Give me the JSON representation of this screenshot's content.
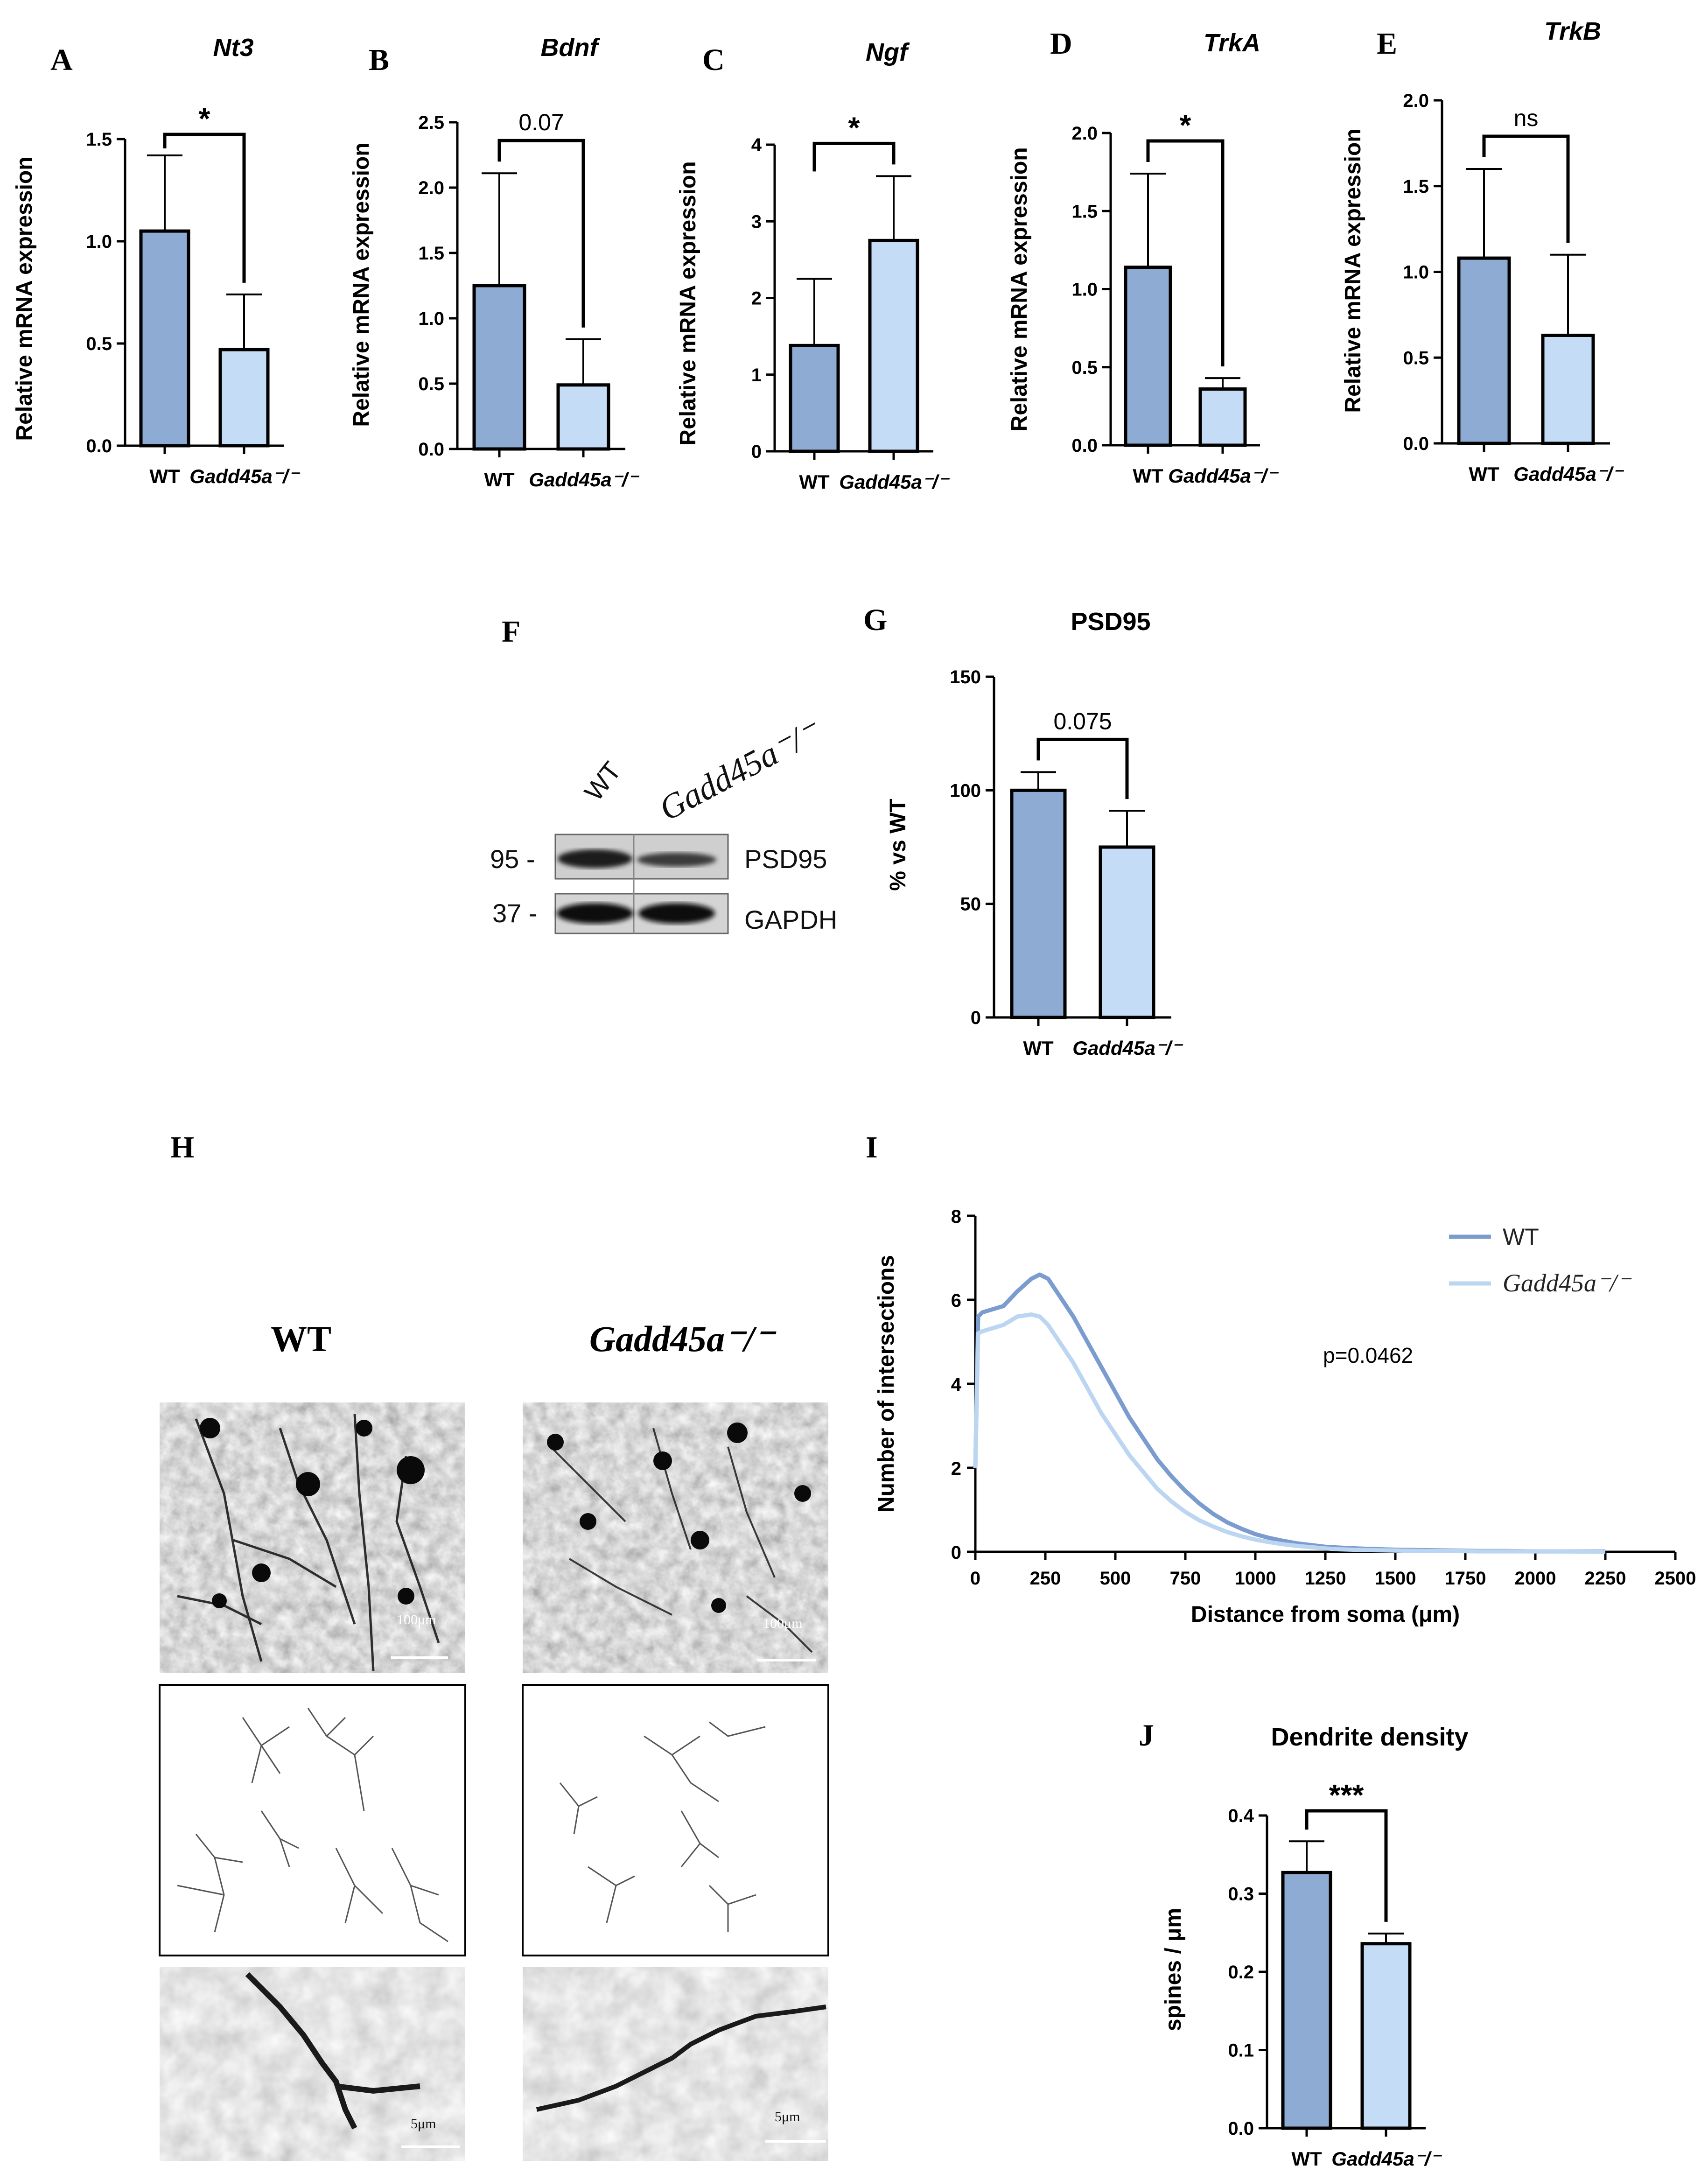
{
  "panel_labels": {
    "A": "A",
    "B": "B",
    "C": "C",
    "D": "D",
    "E": "E",
    "F": "F",
    "G": "G",
    "H": "H",
    "I": "I",
    "J": "J"
  },
  "colors": {
    "wt": "#8eabd4",
    "ko": "#c5dcf6",
    "wt_line": "#7b9ccf",
    "ko_line": "#bcd6f2",
    "axis": "#000000"
  },
  "chart_data": [
    {
      "id": "A",
      "type": "bar",
      "title": "Nt3",
      "ylabel": "Relative mRNA expression",
      "ylim": [
        0,
        1.5
      ],
      "yticks": [
        "0.0",
        "0.5",
        "1.0",
        "1.5"
      ],
      "categories": [
        "WT",
        "Gadd45a⁻/⁻"
      ],
      "values": [
        1.05,
        0.47
      ],
      "errors": [
        0.37,
        0.27
      ],
      "significance": "*"
    },
    {
      "id": "B",
      "type": "bar",
      "title": "Bdnf",
      "ylabel": "Relative mRNA expression",
      "ylim": [
        0,
        2.5
      ],
      "yticks": [
        "0.0",
        "0.5",
        "1.0",
        "1.5",
        "2.0",
        "2.5"
      ],
      "categories": [
        "WT",
        "Gadd45a⁻/⁻"
      ],
      "values": [
        1.25,
        0.49
      ],
      "errors": [
        0.86,
        0.35
      ],
      "significance": "0.07"
    },
    {
      "id": "C",
      "type": "bar",
      "title": "Ngf",
      "ylabel": "Relative mRNA expression",
      "ylim": [
        0,
        4
      ],
      "yticks": [
        "0",
        "1",
        "2",
        "3",
        "4"
      ],
      "categories": [
        "WT",
        "Gadd45a⁻/⁻"
      ],
      "values": [
        1.38,
        2.75
      ],
      "errors": [
        0.87,
        0.84
      ],
      "significance": "*"
    },
    {
      "id": "D",
      "type": "bar",
      "title": "TrkA",
      "ylabel": "Relative mRNA expression",
      "ylim": [
        0,
        2.0
      ],
      "yticks": [
        "0.0",
        "0.5",
        "1.0",
        "1.5",
        "2.0"
      ],
      "categories": [
        "WT",
        "Gadd45a⁻/⁻"
      ],
      "values": [
        1.14,
        0.36
      ],
      "errors": [
        0.6,
        0.07
      ],
      "significance": "*"
    },
    {
      "id": "E",
      "type": "bar",
      "title": "TrkB",
      "ylabel": "Relative mRNA expression",
      "ylim": [
        0,
        2.0
      ],
      "yticks": [
        "0.0",
        "0.5",
        "1.0",
        "1.5",
        "2.0"
      ],
      "categories": [
        "WT",
        "Gadd45a⁻/⁻"
      ],
      "values": [
        1.08,
        0.63
      ],
      "errors": [
        0.52,
        0.47
      ],
      "significance": "ns"
    },
    {
      "id": "G",
      "type": "bar",
      "title": "PSD95",
      "ylabel": "% vs WT",
      "ylim": [
        0,
        150
      ],
      "yticks": [
        "0",
        "50",
        "100",
        "150"
      ],
      "categories": [
        "WT",
        "Gadd45a⁻/⁻"
      ],
      "values": [
        100,
        75
      ],
      "errors": [
        8,
        16
      ],
      "significance": "0.075"
    },
    {
      "id": "I",
      "type": "line",
      "xlabel": "Distance from soma (μm)",
      "ylabel": "Number of intersections",
      "xlim": [
        0,
        2500
      ],
      "ylim": [
        0,
        8
      ],
      "xticks": [
        "0",
        "250",
        "500",
        "750",
        "1000",
        "1250",
        "1500",
        "1750",
        "2000",
        "2250",
        "2500"
      ],
      "yticks": [
        "0",
        "2",
        "4",
        "6",
        "8"
      ],
      "annotation": "p=0.0462",
      "series": [
        {
          "name": "WT",
          "x": [
            0,
            10,
            25,
            50,
            100,
            150,
            200,
            230,
            260,
            300,
            350,
            400,
            450,
            500,
            550,
            600,
            650,
            700,
            750,
            800,
            850,
            900,
            950,
            1000,
            1050,
            1100,
            1150,
            1200,
            1250,
            1300,
            1400,
            1500,
            1600,
            1700,
            1800,
            1900,
            2000,
            2100,
            2250
          ],
          "y": [
            2.0,
            5.6,
            5.7,
            5.75,
            5.85,
            6.2,
            6.5,
            6.6,
            6.5,
            6.1,
            5.6,
            5.0,
            4.4,
            3.8,
            3.2,
            2.7,
            2.2,
            1.8,
            1.45,
            1.15,
            0.9,
            0.7,
            0.55,
            0.42,
            0.33,
            0.26,
            0.2,
            0.16,
            0.12,
            0.1,
            0.07,
            0.05,
            0.04,
            0.03,
            0.02,
            0.02,
            0.01,
            0.01,
            0.01
          ]
        },
        {
          "name": "Gadd45a⁻/⁻",
          "x": [
            0,
            10,
            25,
            50,
            100,
            150,
            200,
            230,
            260,
            300,
            350,
            400,
            450,
            500,
            550,
            600,
            650,
            700,
            750,
            800,
            850,
            900,
            950,
            1000,
            1050,
            1100,
            1150,
            1200,
            1250,
            1300,
            1400,
            1500,
            1600,
            1700,
            1800,
            1900,
            2000,
            2100,
            2250
          ],
          "y": [
            2.0,
            5.2,
            5.25,
            5.3,
            5.4,
            5.6,
            5.65,
            5.6,
            5.4,
            5.0,
            4.5,
            3.9,
            3.3,
            2.8,
            2.3,
            1.9,
            1.5,
            1.2,
            0.95,
            0.75,
            0.6,
            0.47,
            0.37,
            0.29,
            0.23,
            0.18,
            0.14,
            0.11,
            0.08,
            0.06,
            0.04,
            0.03,
            0.02,
            0.02,
            0.01,
            0.01,
            0.01,
            0.01,
            0.0
          ]
        }
      ]
    },
    {
      "id": "J",
      "type": "bar",
      "title": "Dendrite density",
      "ylabel": "spines / μm",
      "ylim": [
        0,
        0.4
      ],
      "yticks": [
        "0.0",
        "0.1",
        "0.2",
        "0.3",
        "0.4"
      ],
      "categories": [
        "WT",
        "Gadd45a⁻/⁻"
      ],
      "values": [
        0.327,
        0.236
      ],
      "errors": [
        0.04,
        0.013
      ],
      "significance": "***"
    }
  ],
  "western_blot": {
    "lanes": [
      "WT",
      "Gadd45a⁻/⁻"
    ],
    "markers": [
      "95 -",
      "37 -"
    ],
    "bands": [
      "PSD95",
      "GAPDH"
    ]
  },
  "micrographs": {
    "wt_label": "WT",
    "ko_label": "Gadd45a⁻/⁻",
    "scale_large": "100μm",
    "scale_small": "5μm"
  }
}
